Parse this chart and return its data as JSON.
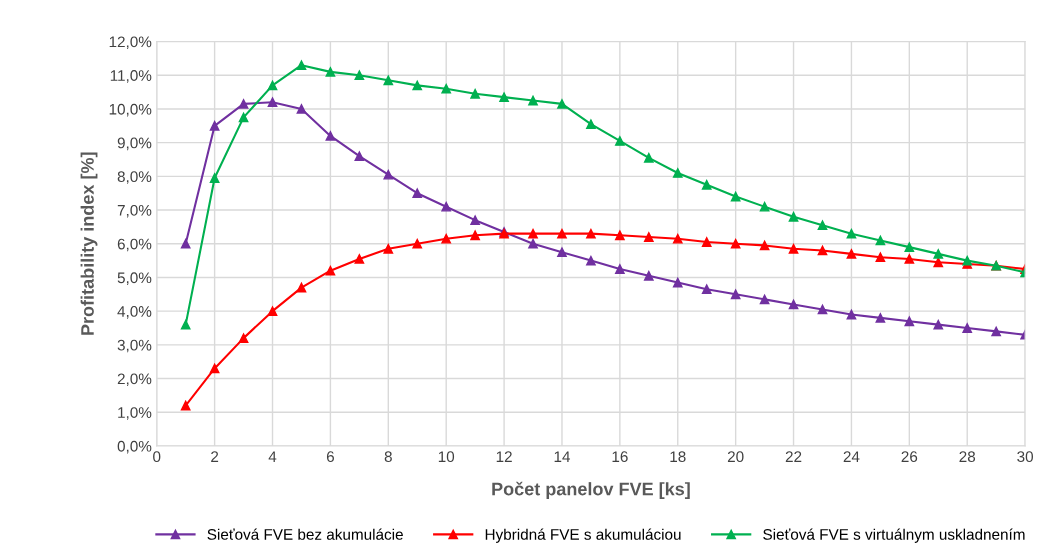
{
  "chart_data": {
    "type": "line",
    "xlabel": "Počet panelov FVE [ks]",
    "ylabel": "Profitability index [%]",
    "x": [
      1,
      2,
      3,
      4,
      5,
      6,
      7,
      8,
      9,
      10,
      11,
      12,
      13,
      14,
      15,
      16,
      17,
      18,
      19,
      20,
      21,
      22,
      23,
      24,
      25,
      26,
      27,
      28,
      29,
      30
    ],
    "series": [
      {
        "name": "Sieťová FVE bez akumulácie",
        "color": "#7030a0",
        "values": [
          6.0,
          9.5,
          10.15,
          10.2,
          10.0,
          9.2,
          8.6,
          8.05,
          7.5,
          7.1,
          6.7,
          6.35,
          6.0,
          5.75,
          5.5,
          5.25,
          5.05,
          4.85,
          4.65,
          4.5,
          4.35,
          4.2,
          4.05,
          3.9,
          3.8,
          3.7,
          3.6,
          3.5,
          3.4,
          3.3
        ]
      },
      {
        "name": "Hybridná FVE s akumuláciou",
        "color": "#ff0000",
        "values": [
          1.2,
          2.3,
          3.2,
          4.0,
          4.7,
          5.2,
          5.55,
          5.85,
          6.0,
          6.15,
          6.25,
          6.3,
          6.3,
          6.3,
          6.3,
          6.25,
          6.2,
          6.15,
          6.05,
          6.0,
          5.95,
          5.85,
          5.8,
          5.7,
          5.6,
          5.55,
          5.45,
          5.4,
          5.35,
          5.25
        ]
      },
      {
        "name": "Sieťová FVE s virtuálnym uskladnením",
        "color": "#00b050",
        "values": [
          3.6,
          7.95,
          9.75,
          10.7,
          11.3,
          11.1,
          11.0,
          10.85,
          10.7,
          10.6,
          10.45,
          10.35,
          10.25,
          10.15,
          9.55,
          9.05,
          8.55,
          8.1,
          7.75,
          7.4,
          7.1,
          6.8,
          6.55,
          6.3,
          6.1,
          5.9,
          5.7,
          5.5,
          5.35,
          5.15
        ]
      }
    ],
    "xlim": [
      0,
      30
    ],
    "xticks": [
      0,
      2,
      4,
      6,
      8,
      10,
      12,
      14,
      16,
      18,
      20,
      22,
      24,
      26,
      28,
      30
    ],
    "ylim": [
      0,
      12
    ],
    "yticks": [
      {
        "value": 0,
        "label": "0,0%"
      },
      {
        "value": 1,
        "label": "1,0%"
      },
      {
        "value": 2,
        "label": "2,0%"
      },
      {
        "value": 3,
        "label": "3,0%"
      },
      {
        "value": 4,
        "label": "4,0%"
      },
      {
        "value": 5,
        "label": "5,0%"
      },
      {
        "value": 6,
        "label": "6,0%"
      },
      {
        "value": 7,
        "label": "7,0%"
      },
      {
        "value": 8,
        "label": "8,0%"
      },
      {
        "value": 9,
        "label": "9,0%"
      },
      {
        "value": 10,
        "label": "10,0%"
      },
      {
        "value": 11,
        "label": "11,0%"
      },
      {
        "value": 12,
        "label": "12,0%"
      }
    ],
    "grid": true,
    "legend": "bottom",
    "marker": "triangle",
    "line_style": "solid"
  }
}
